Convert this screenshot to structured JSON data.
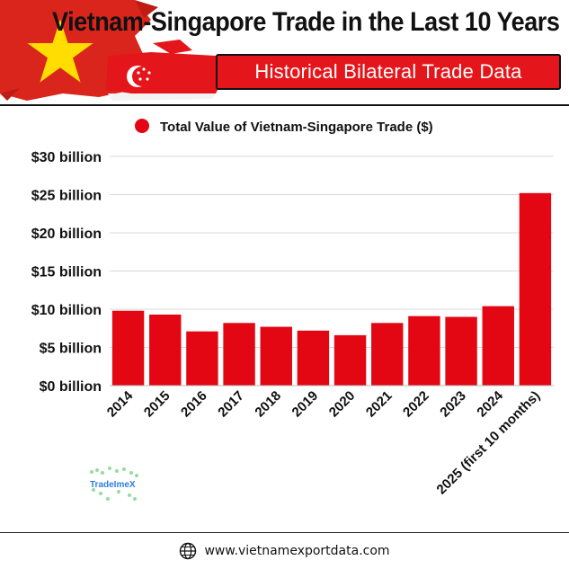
{
  "header": {
    "title": "Vietnam-Singapore Trade in the Last 10 Years",
    "subtitle": "Historical Bilateral Trade Data"
  },
  "colors": {
    "accent": "#e4161b",
    "bar": "#e30613",
    "flag_yellow": "#ffdd00",
    "text": "#111111"
  },
  "watermark": {
    "text": "TradeImeX"
  },
  "footer": {
    "icon": "globe-icon",
    "url": "www.vietnamexportdata.com"
  },
  "chart_data": {
    "type": "bar",
    "title": "",
    "legend": [
      {
        "label": "Total Value of Vietnam-Singapore Trade ($)",
        "color": "#e30613"
      }
    ],
    "legend_placement": "top",
    "categories": [
      "2014",
      "2015",
      "2016",
      "2017",
      "2018",
      "2019",
      "2020",
      "2021",
      "2022",
      "2023",
      "2024",
      "2025 (first 10 months)"
    ],
    "values": [
      9.8,
      9.3,
      7.1,
      8.2,
      7.7,
      7.2,
      6.6,
      8.2,
      9.1,
      9.0,
      10.4,
      25.2
    ],
    "unit": "billion USD",
    "xlabel": "",
    "ylabel": "",
    "ylim": [
      0,
      30
    ],
    "yticks": [
      0,
      5,
      10,
      15,
      20,
      25,
      30
    ],
    "ytick_labels": [
      "$0 billion",
      "$5 billion",
      "$10 billion",
      "$15 billion",
      "$20 billion",
      "$25 billion",
      "$30 billion"
    ],
    "grid": true,
    "x_label_rotation": "45 degrees"
  }
}
